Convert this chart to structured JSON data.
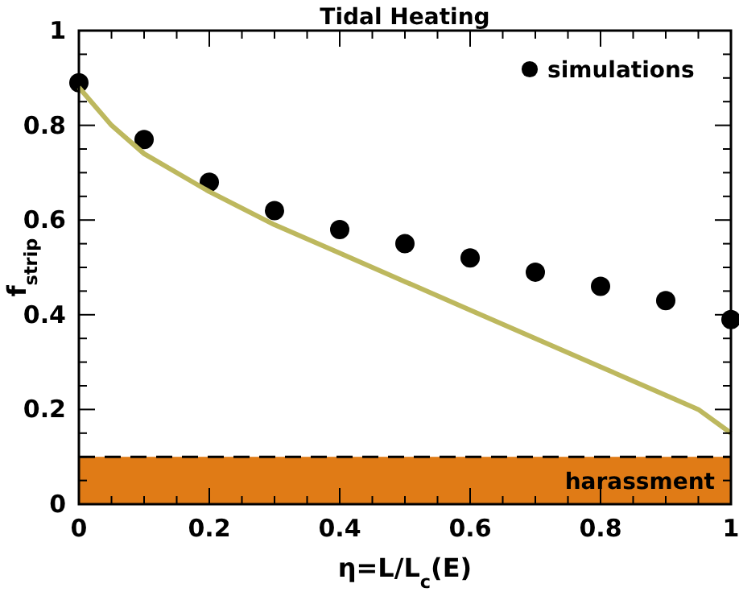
{
  "chart_data": {
    "type": "scatter",
    "title": "Tidal Heating",
    "xlabel": "η=L/L$_{c}$(E)",
    "ylabel": "f$_{strip}$",
    "xlim": [
      0,
      1
    ],
    "ylim": [
      0,
      1
    ],
    "xticks": [
      0,
      0.2,
      0.4,
      0.6,
      0.8,
      1
    ],
    "yticks": [
      0,
      0.2,
      0.4,
      0.6,
      0.8,
      1
    ],
    "grid": false,
    "legend": "top right",
    "series": [
      {
        "name": "simulations",
        "marker": "circle",
        "color": "#000000",
        "x": [
          0,
          0.1,
          0.2,
          0.3,
          0.4,
          0.5,
          0.6,
          0.7,
          0.8,
          0.9,
          1
        ],
        "values": [
          0.89,
          0.77,
          0.68,
          0.62,
          0.58,
          0.55,
          0.52,
          0.49,
          0.46,
          0.43,
          0.39
        ]
      },
      {
        "type": "line",
        "color": "#bdb85e",
        "line_style": "solid",
        "marker": "none",
        "x": [
          0,
          0.05,
          0.1,
          0.2,
          0.3,
          0.4,
          0.5,
          0.6,
          0.7,
          0.8,
          0.9,
          0.95,
          1
        ],
        "values": [
          0.88,
          0.8,
          0.74,
          0.66,
          0.59,
          0.53,
          0.47,
          0.41,
          0.35,
          0.29,
          0.23,
          0.2,
          0.15
        ]
      }
    ],
    "bands": [
      {
        "axis": "y",
        "from": 0,
        "to": 0.1,
        "label": "harassment",
        "color": "#e07b16"
      }
    ],
    "ref_lines": [
      {
        "axis": "y",
        "value": 0.1,
        "line_style": "dashed",
        "color": "#000000"
      }
    ]
  }
}
